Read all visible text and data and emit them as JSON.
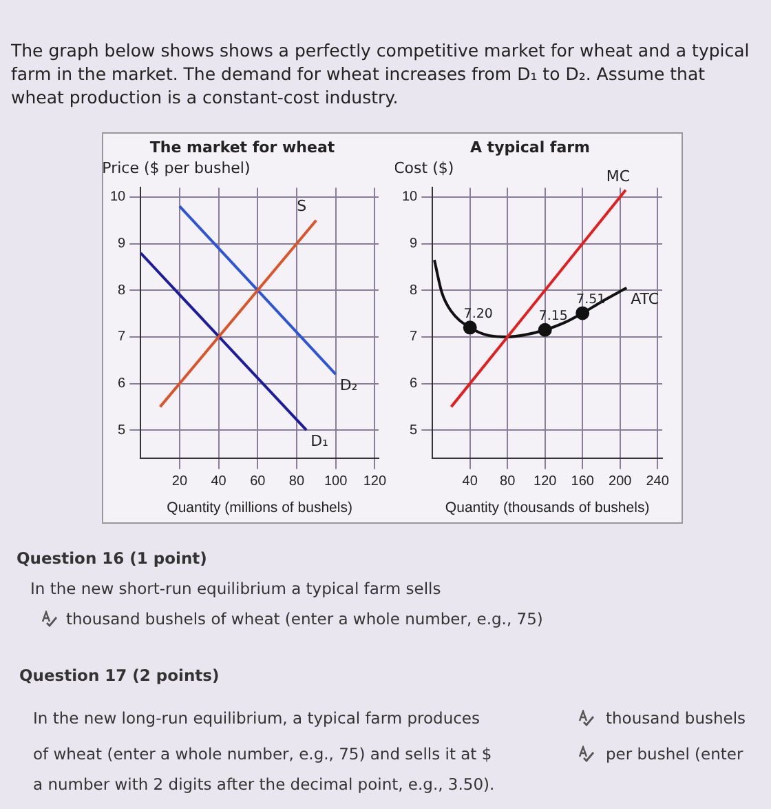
{
  "chart_data": [
    {
      "type": "other",
      "annotations": [
        "The graph below shows shows a perfectly competitive market for wheat and a typical farm in the market. The demand for wheat increases from D₁ to D₂. Assume that wheat production is a constant-cost industry."
      ]
    },
    {
      "type": "line",
      "title": "The market for wheat",
      "ylabel": "Price ($ per bushel)",
      "xlabel": "Quantity (millions of bushels)",
      "xlim": [
        0,
        122
      ],
      "xticks": [
        20,
        40,
        60,
        80,
        100,
        120
      ],
      "ylim": [
        4.4,
        10.2
      ],
      "yticks": [
        5,
        6,
        7,
        8,
        9,
        10
      ],
      "grid": true,
      "series": [
        {
          "name": "S",
          "color": "#d9552b",
          "x": [
            10,
            90
          ],
          "values": [
            5.5,
            9.5
          ]
        },
        {
          "name": "D₁",
          "color": "#1c1c9c",
          "x": [
            0,
            85
          ],
          "values": [
            8.8,
            5
          ]
        },
        {
          "name": "D₂",
          "color": "#2f55d4",
          "x": [
            20,
            100
          ],
          "values": [
            9.8,
            6.2
          ]
        }
      ]
    },
    {
      "type": "line",
      "title": "A typical farm",
      "ylabel": "Cost ($)",
      "xlabel": "Quantity (thousands of bushels)",
      "xlim": [
        0,
        245
      ],
      "xticks": [
        40,
        80,
        120,
        160,
        200,
        240
      ],
      "ylim": [
        4.4,
        10.2
      ],
      "yticks": [
        5,
        6,
        7,
        8,
        9,
        10
      ],
      "grid": true,
      "series": [
        {
          "name": "MC",
          "color": "#e02020",
          "x": [
            20,
            206
          ],
          "values": [
            5.5,
            10.15
          ]
        },
        {
          "name": "ATC",
          "color": "#111111",
          "x": [
            2,
            10,
            20,
            40,
            60,
            80,
            100,
            120,
            140,
            160,
            180,
            207
          ],
          "values": [
            8.65,
            7.95,
            7.55,
            7.2,
            7.03,
            7,
            7.05,
            7.15,
            7.3,
            7.51,
            7.75,
            8.05
          ]
        },
        {
          "type": "scatter",
          "color": "#111111",
          "marker": "circle",
          "x": [
            40,
            120,
            160
          ],
          "values": [
            7.2,
            7.15,
            7.51
          ],
          "value_labels": [
            "7.20",
            "7.15",
            "7.51"
          ]
        }
      ]
    },
    {
      "type": "other",
      "annotations": [
        "Question 16 (1 point)",
        "In the new short-run equilibrium a typical farm sells",
        "thousand bushels of wheat (enter a whole number, e.g., 75)",
        "Question 17 (2 points)",
        "In the new long-run equilibrium, a typical farm produces",
        "thousand bushels",
        "of wheat (enter a whole number, e.g., 75) and sells it at $",
        "per bushel (enter",
        "a number with 2 digits after the decimal point, e.g., 3.50)."
      ]
    }
  ]
}
